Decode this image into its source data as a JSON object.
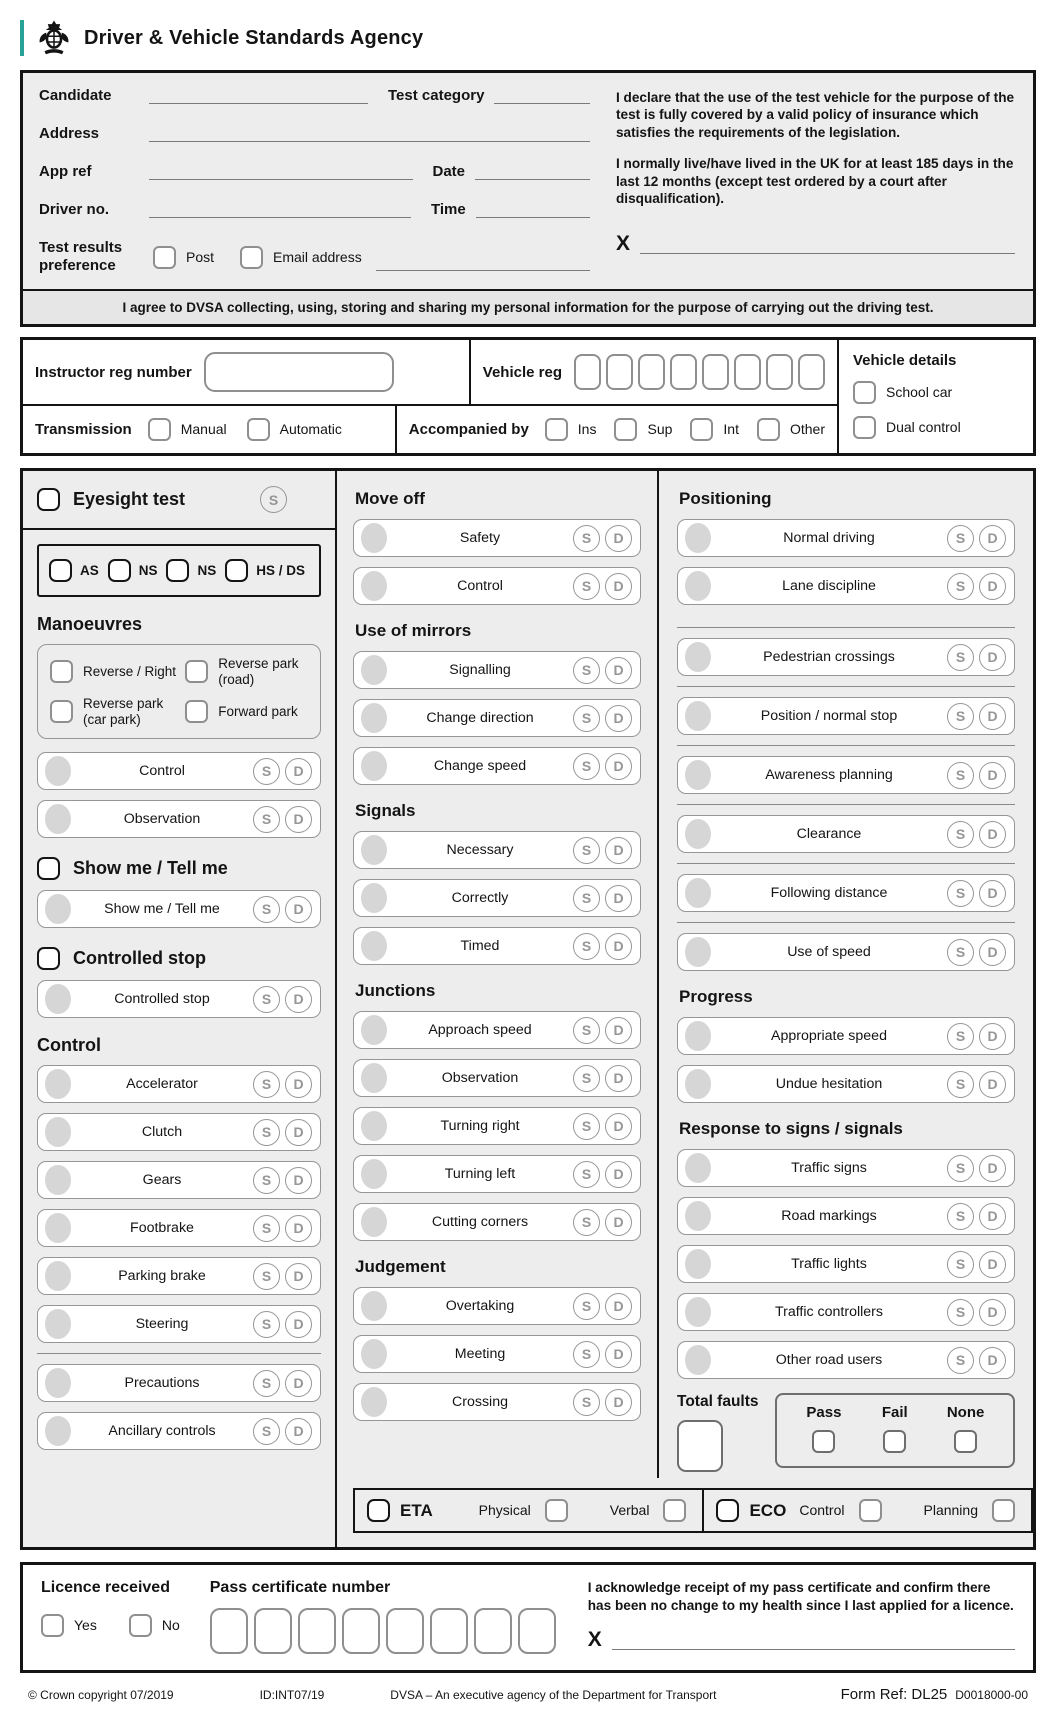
{
  "header": {
    "agency_name": "Driver & Vehicle Standards Agency"
  },
  "candidate": {
    "labels": {
      "candidate": "Candidate",
      "address": "Address",
      "app_ref": "App ref",
      "driver_no": "Driver no.",
      "test_category": "Test category",
      "date": "Date",
      "time": "Time"
    },
    "test_results_preference_label": "Test results preference",
    "preference_options": [
      "Post",
      "Email address"
    ],
    "declaration_insurance": "I declare that the use of the test vehicle for the purpose of the test is fully covered by a valid policy of insurance which satisfies the requirements of the legislation.",
    "declaration_residency": "I normally live/have lived in the UK for at least 185 days in the last 12 months (except test ordered by a court after disqualification).",
    "signature_mark": "X",
    "agree_statement": "I agree to DVSA collecting, using, storing and sharing my personal information for the purpose of carrying out the driving test."
  },
  "vehicle": {
    "instructor_reg_label": "Instructor reg number",
    "vehicle_reg_label": "Vehicle reg",
    "vehicle_reg_box_count": 8,
    "details_label": "Vehicle details",
    "details_options": [
      "School car",
      "Dual control"
    ],
    "transmission_label": "Transmission",
    "transmission_options": [
      "Manual",
      "Automatic"
    ],
    "accompanied_label": "Accompanied by",
    "accompanied_options": [
      "Ins",
      "Sup",
      "Int",
      "Other"
    ]
  },
  "marking": {
    "fault_row": {
      "s": "S",
      "d": "D"
    },
    "eyesight": {
      "label": "Eyesight test",
      "badge": "S"
    },
    "category_boxes": [
      "AS",
      "NS",
      "NS",
      "HS / DS"
    ],
    "left": {
      "manoeuvres_title": "Manoeuvres",
      "manoeuvre_options": [
        "Reverse / Right",
        "Reverse park (road)",
        "Reverse park (car park)",
        "Forward park"
      ],
      "manoeuvre_rows": [
        "Control",
        "Observation"
      ],
      "show_me_title": "Show me / Tell me",
      "show_me_rows": [
        "Show me / Tell me"
      ],
      "controlled_stop_title": "Controlled stop",
      "controlled_stop_rows": [
        "Controlled stop"
      ],
      "control_title": "Control",
      "control_rows": [
        "Accelerator",
        "Clutch",
        "Gears",
        "Footbrake",
        "Parking brake",
        "Steering"
      ],
      "control_extra_rows": [
        "Precautions",
        "Ancillary controls"
      ]
    },
    "middle_sections": [
      {
        "title": "Move off",
        "rows": [
          "Safety",
          "Control"
        ]
      },
      {
        "title": "Use of mirrors",
        "rows": [
          "Signalling",
          "Change direction",
          "Change speed"
        ]
      },
      {
        "title": "Signals",
        "rows": [
          "Necessary",
          "Correctly",
          "Timed"
        ]
      },
      {
        "title": "Junctions",
        "rows": [
          "Approach speed",
          "Observation",
          "Turning right",
          "Turning left",
          "Cutting corners"
        ]
      },
      {
        "title": "Judgement",
        "rows": [
          "Overtaking",
          "Meeting",
          "Crossing"
        ]
      }
    ],
    "right_sections": [
      {
        "title": "Positioning",
        "rows": [
          "Normal driving",
          "Lane discipline"
        ]
      },
      {
        "title": null,
        "divided": "all",
        "rows": [
          "Pedestrian crossings",
          "Position / normal stop",
          "Awareness planning",
          "Clearance",
          "Following distance",
          "Use of speed"
        ]
      },
      {
        "title": "Progress",
        "rows": [
          "Appropriate speed",
          "Undue hesitation"
        ]
      },
      {
        "title": "Response to signs / signals",
        "rows": [
          "Traffic signs",
          "Road markings",
          "Traffic lights",
          "Traffic controllers",
          "Other road users"
        ]
      }
    ],
    "totals": {
      "label": "Total faults",
      "outcomes": [
        "Pass",
        "Fail",
        "None"
      ]
    },
    "eta": {
      "label": "ETA",
      "options": [
        "Physical",
        "Verbal"
      ]
    },
    "eco": {
      "label": "ECO",
      "options": [
        "Control",
        "Planning"
      ]
    }
  },
  "licence": {
    "received_label": "Licence received",
    "received_options": [
      "Yes",
      "No"
    ],
    "pass_cert_label": "Pass certificate number",
    "pass_cert_box_count": 8,
    "acknowledgement": "I acknowledge receipt of my pass certificate and confirm there has been no change to my health since I last applied for a licence.",
    "signature_mark": "X"
  },
  "footer": {
    "copyright": "© Crown copyright 07/2019",
    "form_id": "ID:INT07/19",
    "agency_line": "DVSA – An executive agency of the Department for Transport",
    "form_ref": "Form Ref: DL25",
    "doc_code": "D0018000-00"
  },
  "colors": {
    "accent_teal": "#28a197",
    "border_dark": "#141414",
    "panel_gray": "#ededed"
  }
}
